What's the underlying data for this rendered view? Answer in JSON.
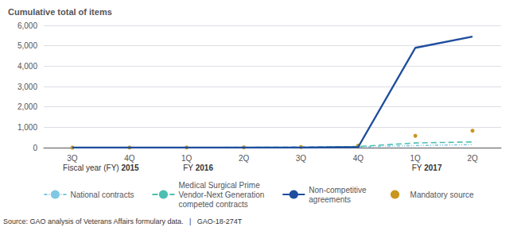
{
  "chart_data": {
    "type": "line",
    "y_label": "Cumulative total of items",
    "categories": [
      "3Q",
      "4Q",
      "1Q",
      "2Q",
      "3Q",
      "4Q",
      "1Q",
      "2Q"
    ],
    "series": [
      {
        "name": "National contracts",
        "color": "#7ec8e3",
        "line_style": "dashdot",
        "marker": "none",
        "values": [
          2,
          4,
          8,
          15,
          25,
          40,
          100,
          150
        ]
      },
      {
        "name": "Mandatory source",
        "color": "#c8961e",
        "line_style": "none",
        "marker": "circle",
        "values": [
          1,
          3,
          6,
          12,
          30,
          100,
          580,
          830
        ]
      },
      {
        "name": "Medical Surgical Prime\nVendor-Next Generation\ncompeted contracts",
        "color": "#4dbfb0",
        "line_style": "dashed",
        "marker": "none",
        "values": [
          0,
          1,
          3,
          10,
          25,
          55,
          230,
          280
        ]
      },
      {
        "name": "Non-competitive\nagreements",
        "color": "#1f4e9e",
        "line_style": "solid",
        "marker": "none",
        "values": [
          0,
          0,
          0,
          0,
          0,
          30,
          4900,
          5450
        ]
      }
    ],
    "ylim": [
      0,
      6000
    ],
    "yticks": [
      0,
      {
        "value": 1000,
        "label": "1,000"
      },
      {
        "value": 2000,
        "label": "2,000"
      },
      {
        "value": 3000,
        "label": "3,000"
      },
      {
        "value": 4000,
        "label": "4,000"
      },
      {
        "value": 5000,
        "label": "5,000"
      },
      {
        "value": 6000,
        "label": "6,000"
      }
    ],
    "grid": true,
    "legend": "bottom",
    "annotations": [
      "Fiscal year (FY) 2015",
      "FY 2016",
      "FY 2017"
    ],
    "source": "Source: GAO analysis of Veterans Affairs formulary data.   |   GAO-18-274T"
  }
}
